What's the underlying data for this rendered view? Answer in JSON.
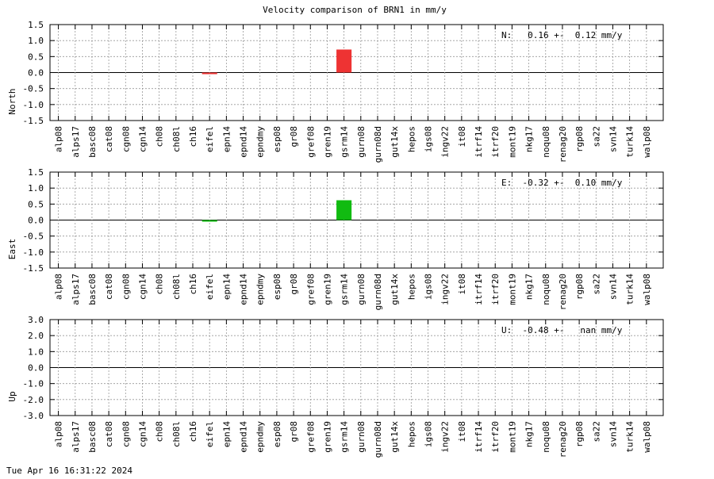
{
  "title": "Velocity comparison of BRN1 in mm/y",
  "timestamp": "Tue Apr 16 16:31:22 2024",
  "chart_data": [
    {
      "type": "bar",
      "ylabel": "North",
      "annotation": "N:   0.16 +-  0.12 mm/y",
      "ylim": [
        -1.5,
        1.5
      ],
      "yticks": [
        "1.5",
        "1.0",
        "0.5",
        "0.0",
        "-0.5",
        "-1.0",
        "-1.5"
      ],
      "color": "#ee3333",
      "grid": true,
      "categories": [
        "alp08",
        "alps17",
        "basc08",
        "cat08",
        "cgn08",
        "cgn14",
        "ch08",
        "ch08l",
        "ch16",
        "eifel",
        "epn14",
        "epnd14",
        "epndmy",
        "esp08",
        "gr08",
        "gref08",
        "gren19",
        "gsrm14",
        "gurn08",
        "gurn08d",
        "gut14x",
        "hepos",
        "igs08",
        "ingv22",
        "it08",
        "itrf14",
        "itrf20",
        "mont19",
        "nkg17",
        "noqu08",
        "renag20",
        "rgp08",
        "sa22",
        "svn14",
        "turk14",
        "walp08"
      ],
      "values": [
        0,
        0,
        0,
        0,
        0,
        0,
        0,
        0,
        0,
        -0.03,
        0,
        0,
        0,
        0,
        0,
        0,
        0,
        0.72,
        0,
        0,
        0,
        0,
        0,
        0,
        0,
        0,
        0,
        0,
        0,
        0,
        0,
        0,
        0,
        0,
        0,
        0
      ]
    },
    {
      "type": "bar",
      "ylabel": "East",
      "annotation": "E:  -0.32 +-  0.10 mm/y",
      "ylim": [
        -1.5,
        1.5
      ],
      "yticks": [
        "1.5",
        "1.0",
        "0.5",
        "0.0",
        "-0.5",
        "-1.0",
        "-1.5"
      ],
      "color": "#11bb11",
      "grid": true,
      "categories": [
        "alp08",
        "alps17",
        "basc08",
        "cat08",
        "cgn08",
        "cgn14",
        "ch08",
        "ch08l",
        "ch16",
        "eifel",
        "epn14",
        "epnd14",
        "epndmy",
        "esp08",
        "gr08",
        "gref08",
        "gren19",
        "gsrm14",
        "gurn08",
        "gurn08d",
        "gut14x",
        "hepos",
        "igs08",
        "ingv22",
        "it08",
        "itrf14",
        "itrf20",
        "mont19",
        "nkg17",
        "noqu08",
        "renag20",
        "rgp08",
        "sa22",
        "svn14",
        "turk14",
        "walp08"
      ],
      "values": [
        0,
        0,
        0,
        0,
        0,
        0,
        0,
        0,
        0,
        -0.04,
        0,
        0,
        0,
        0,
        0,
        0,
        0,
        0.62,
        0,
        0,
        0,
        0,
        0,
        0,
        0,
        0,
        0,
        0,
        0,
        0,
        0,
        0,
        0,
        0,
        0,
        0
      ]
    },
    {
      "type": "bar",
      "ylabel": "Up",
      "annotation": "U:  -0.48 +-   nan mm/y",
      "ylim": [
        -3.0,
        3.0
      ],
      "yticks": [
        "3.0",
        "2.0",
        "1.0",
        "0.0",
        "-1.0",
        "-2.0",
        "-3.0"
      ],
      "color": "#3333ee",
      "grid": true,
      "categories": [
        "alp08",
        "alps17",
        "basc08",
        "cat08",
        "cgn08",
        "cgn14",
        "ch08",
        "ch08l",
        "ch16",
        "eifel",
        "epn14",
        "epnd14",
        "epndmy",
        "esp08",
        "gr08",
        "gref08",
        "gren19",
        "gsrm14",
        "gurn08",
        "gurn08d",
        "gut14x",
        "hepos",
        "igs08",
        "ingv22",
        "it08",
        "itrf14",
        "itrf20",
        "mont19",
        "nkg17",
        "noqu08",
        "renag20",
        "rgp08",
        "sa22",
        "svn14",
        "turk14",
        "walp08"
      ],
      "values": [
        0,
        0,
        0,
        0,
        0,
        0,
        0,
        0,
        0,
        0,
        0,
        0,
        0,
        0,
        0,
        0,
        0,
        0,
        0,
        0,
        0,
        0,
        0,
        0,
        0,
        0,
        0,
        0,
        0,
        0,
        0,
        0,
        0,
        0,
        0,
        0
      ]
    }
  ]
}
